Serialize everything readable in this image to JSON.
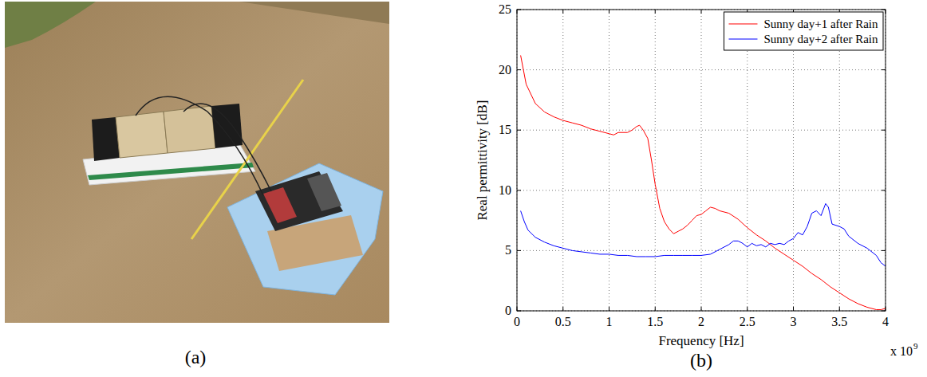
{
  "photo": {
    "label": "(a)"
  },
  "chart_data": {
    "type": "line",
    "panel_label": "(b)",
    "x_label": "Frequency [Hz]",
    "y_label": "Real permittivity [dB]",
    "x_scale_label": "x 10",
    "x_scale_exponent": "9",
    "xlim": [
      0,
      4
    ],
    "xticks": [
      0,
      0.5,
      1,
      1.5,
      2,
      2.5,
      3,
      3.5,
      4
    ],
    "ylim": [
      0,
      25
    ],
    "yticks": [
      0,
      5,
      10,
      15,
      20,
      25
    ],
    "grid": true,
    "legend": "upper right",
    "series": [
      {
        "name": "Sunny day+1 after Rain",
        "color": "#ff0000",
        "x": [
          0.04,
          0.1,
          0.2,
          0.3,
          0.4,
          0.5,
          0.6,
          0.7,
          0.8,
          0.9,
          1.0,
          1.05,
          1.1,
          1.2,
          1.25,
          1.3,
          1.33,
          1.37,
          1.42,
          1.46,
          1.5,
          1.55,
          1.6,
          1.65,
          1.7,
          1.75,
          1.8,
          1.85,
          1.9,
          1.95,
          2.0,
          2.05,
          2.1,
          2.15,
          2.2,
          2.3,
          2.4,
          2.5,
          2.6,
          2.7,
          2.8,
          2.9,
          3.0,
          3.1,
          3.2,
          3.3,
          3.4,
          3.5,
          3.6,
          3.7,
          3.8,
          3.9,
          3.95,
          4.0
        ],
        "values": [
          21.2,
          18.8,
          17.2,
          16.5,
          16.1,
          15.8,
          15.6,
          15.4,
          15.1,
          14.9,
          14.7,
          14.6,
          14.8,
          14.8,
          15.0,
          15.3,
          15.4,
          15.0,
          14.3,
          12.5,
          10.5,
          8.5,
          7.4,
          6.8,
          6.4,
          6.6,
          6.8,
          7.1,
          7.5,
          7.9,
          8.0,
          8.3,
          8.6,
          8.5,
          8.3,
          8.1,
          7.6,
          6.9,
          6.3,
          5.8,
          5.2,
          4.7,
          4.2,
          3.7,
          3.1,
          2.6,
          2.0,
          1.5,
          1.0,
          0.6,
          0.3,
          0.1,
          0.1,
          0.2
        ]
      },
      {
        "name": "Sunny day+2 after Rain",
        "color": "#0000ff",
        "x": [
          0.04,
          0.08,
          0.12,
          0.2,
          0.3,
          0.4,
          0.5,
          0.6,
          0.7,
          0.8,
          0.9,
          1.0,
          1.1,
          1.2,
          1.3,
          1.4,
          1.5,
          1.6,
          1.7,
          1.8,
          1.9,
          2.0,
          2.1,
          2.2,
          2.3,
          2.35,
          2.4,
          2.45,
          2.5,
          2.55,
          2.6,
          2.65,
          2.7,
          2.75,
          2.8,
          2.85,
          2.9,
          2.95,
          3.0,
          3.05,
          3.1,
          3.15,
          3.2,
          3.25,
          3.3,
          3.35,
          3.38,
          3.42,
          3.5,
          3.55,
          3.6,
          3.7,
          3.8,
          3.9,
          3.95,
          4.0
        ],
        "values": [
          8.3,
          7.4,
          6.7,
          6.1,
          5.7,
          5.4,
          5.2,
          5.0,
          4.9,
          4.8,
          4.7,
          4.7,
          4.6,
          4.6,
          4.5,
          4.5,
          4.5,
          4.6,
          4.6,
          4.6,
          4.6,
          4.6,
          4.7,
          5.1,
          5.5,
          5.8,
          5.8,
          5.6,
          5.3,
          5.6,
          5.4,
          5.5,
          5.3,
          5.6,
          5.5,
          5.6,
          5.5,
          5.8,
          6.0,
          6.5,
          6.3,
          7.0,
          8.1,
          8.3,
          7.9,
          8.9,
          8.6,
          7.2,
          7.0,
          6.8,
          6.2,
          5.6,
          5.2,
          4.6,
          4.0,
          3.7
        ]
      }
    ]
  }
}
